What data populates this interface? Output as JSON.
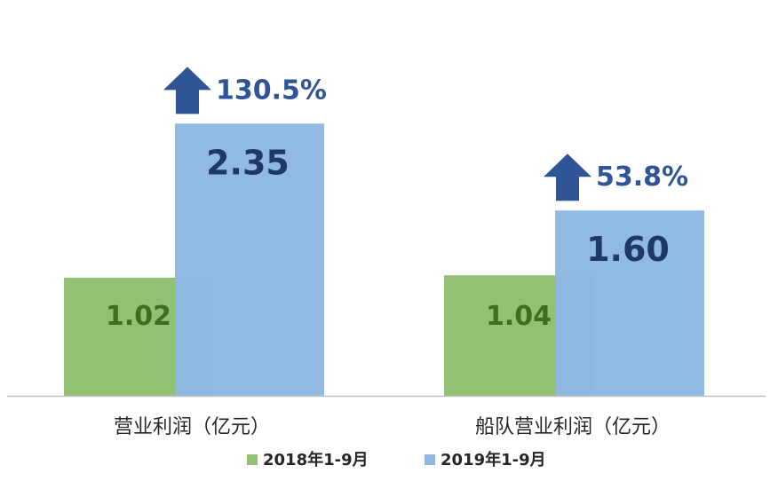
{
  "chart_data": {
    "type": "bar",
    "categories": [
      "营业利润（亿元）",
      "船队营业利润（亿元）"
    ],
    "series": [
      {
        "name": "2018年1-9月",
        "values": [
          1.02,
          1.04
        ],
        "color": "#92c173",
        "text_color": "#3f6e22"
      },
      {
        "name": "2019年1-9月",
        "values": [
          2.35,
          1.6
        ],
        "color": "#8db8e2",
        "text_color": "#1f3864"
      }
    ],
    "value_labels": [
      [
        "1.02",
        "1.04"
      ],
      [
        "2.35",
        "1.60"
      ]
    ],
    "growth": [
      "130.5%",
      "53.8%"
    ],
    "growth_color": "#2f5597",
    "legend_position": "bottom",
    "grid": false
  }
}
